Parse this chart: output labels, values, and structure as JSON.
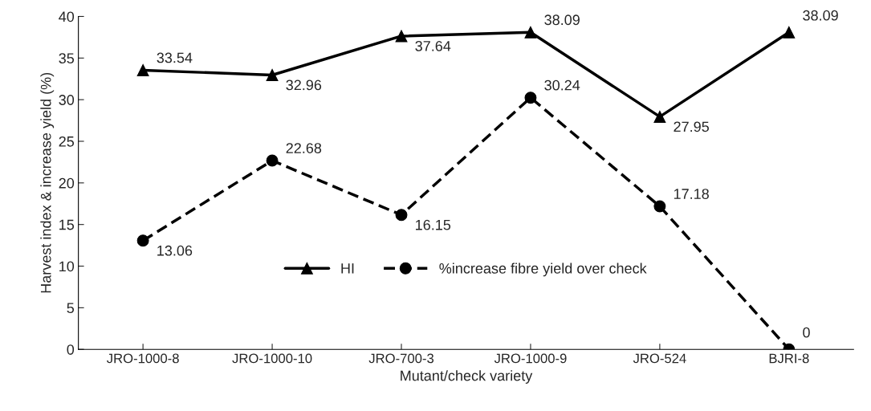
{
  "chart_data": {
    "type": "line",
    "xlabel": "Mutant/check variety",
    "ylabel": "Harvest index & increase yield (%)",
    "categories": [
      "JRO-1000-8",
      "JRO-1000-10",
      "JRO-700-3",
      "JRO-1000-9",
      "JRO-524",
      "BJRI-8"
    ],
    "series": [
      {
        "name": "HI",
        "color": "#000000",
        "marker": "triangle",
        "line_style": "solid",
        "values": [
          33.54,
          32.96,
          37.64,
          38.09,
          27.95,
          38.09
        ]
      },
      {
        "name": "%increase fibre yield over check",
        "color": "#000000",
        "marker": "circle",
        "line_style": "dashed",
        "values": [
          13.06,
          22.68,
          16.15,
          30.24,
          17.18,
          0
        ]
      }
    ],
    "ylim": [
      0,
      40
    ],
    "yticks": [
      0,
      5,
      10,
      15,
      20,
      25,
      30,
      35,
      40
    ],
    "grid": false,
    "legend": "bottom",
    "data_labels": true
  }
}
